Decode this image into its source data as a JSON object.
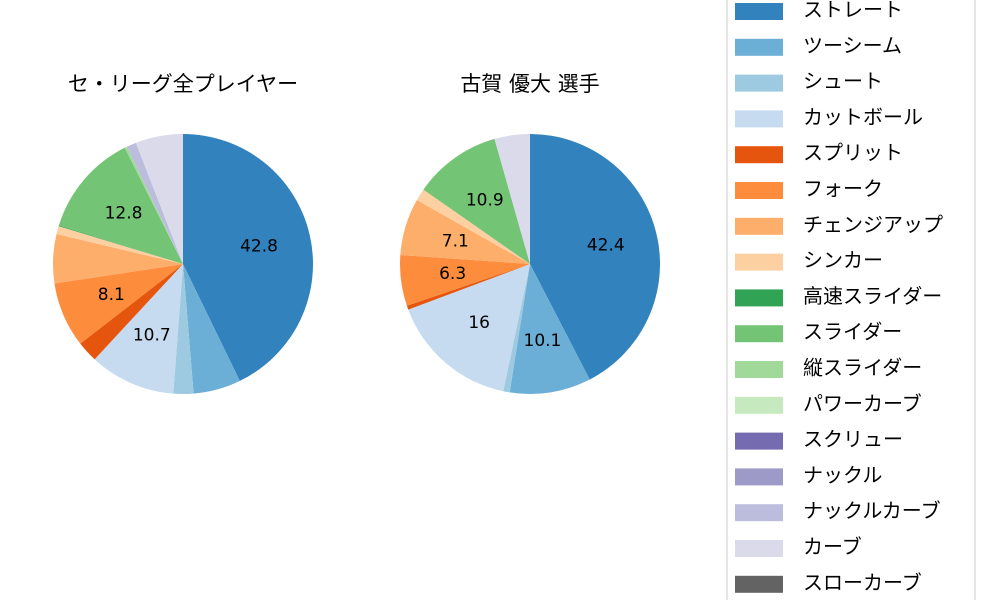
{
  "chart_data": [
    {
      "type": "pie",
      "title": "セ・リーグ全プレイヤー",
      "categories": [
        "ストレート",
        "ツーシーム",
        "シュート",
        "カットボール",
        "スプリット",
        "フォーク",
        "チェンジアップ",
        "シンカー",
        "高速スライダー",
        "スライダー",
        "縦スライダー",
        "パワーカーブ",
        "スクリュー",
        "ナックル",
        "ナックルカーブ",
        "カーブ",
        "スローカーブ"
      ],
      "colors": [
        "#3182bd",
        "#6baed6",
        "#9ecae1",
        "#c6dbef",
        "#e6550d",
        "#fd8d3c",
        "#fdae6b",
        "#fdd0a2",
        "#31a354",
        "#74c476",
        "#a1d99b",
        "#c7e9c0",
        "#756bb1",
        "#9e9ac8",
        "#bcbddc",
        "#dadaeb",
        "#636363"
      ],
      "values": [
        42.8,
        5.9,
        2.5,
        10.7,
        2.6,
        8.1,
        6.1,
        1.0,
        0.1,
        12.8,
        0.3,
        0,
        0,
        0,
        1.2,
        5.9,
        0
      ]
    },
    {
      "type": "pie",
      "title": "古賀 優大  選手",
      "categories": [
        "ストレート",
        "ツーシーム",
        "シュート",
        "カットボール",
        "スプリット",
        "フォーク",
        "チェンジアップ",
        "シンカー",
        "高速スライダー",
        "スライダー",
        "縦スライダー",
        "パワーカーブ",
        "スクリュー",
        "ナックル",
        "ナックルカーブ",
        "カーブ",
        "スローカーブ"
      ],
      "colors": [
        "#3182bd",
        "#6baed6",
        "#9ecae1",
        "#c6dbef",
        "#e6550d",
        "#fd8d3c",
        "#fdae6b",
        "#fdd0a2",
        "#31a354",
        "#74c476",
        "#a1d99b",
        "#c7e9c0",
        "#756bb1",
        "#9e9ac8",
        "#bcbddc",
        "#dadaeb",
        "#636363"
      ],
      "values": [
        42.4,
        10.1,
        0.8,
        16.0,
        0.5,
        6.3,
        7.1,
        1.5,
        0,
        10.9,
        0,
        0,
        0,
        0,
        0,
        4.4,
        0
      ]
    }
  ]
}
